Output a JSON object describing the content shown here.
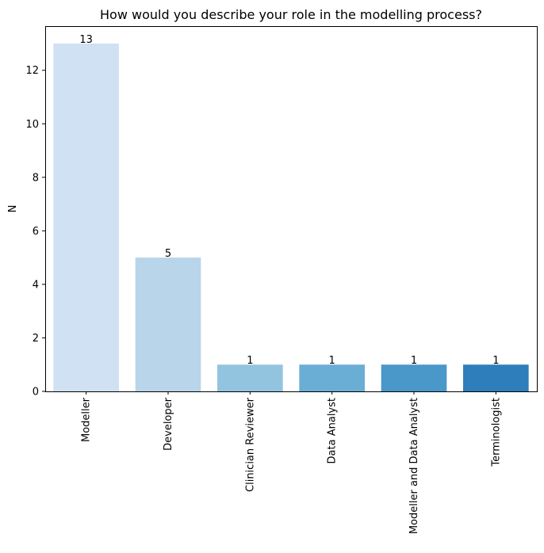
{
  "chart_data": {
    "type": "bar",
    "title": "How would you describe your role in the modelling process?",
    "xlabel": "",
    "ylabel": "N",
    "categories": [
      "Modeller",
      "Developer",
      "Clinician Reviewer",
      "Data Analyst",
      "Modeller and Data Analyst",
      "Terminologist"
    ],
    "values": [
      13,
      5,
      1,
      1,
      1,
      1
    ],
    "value_labels": [
      "13",
      "5",
      "1",
      "1",
      "1",
      "1"
    ],
    "colors": [
      "#cfe1f2",
      "#b8d5ea",
      "#93c4df",
      "#6aaed6",
      "#4a97c9",
      "#2e7ebc"
    ],
    "ylim": [
      0,
      13.65
    ],
    "yticks": [
      0,
      2,
      4,
      6,
      8,
      10,
      12
    ],
    "grid": false,
    "legend": "none"
  }
}
